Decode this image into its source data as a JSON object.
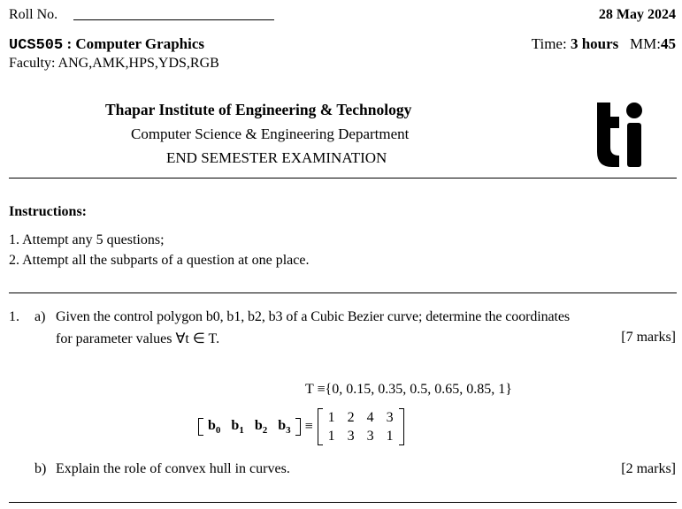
{
  "header": {
    "roll_label": "Roll No.",
    "date": "28 May 2024",
    "course_code": "UCS505",
    "course_sep": " : ",
    "course_name": "Computer Graphics",
    "time_label": "Time: ",
    "time_value": "3 hours",
    "mm_label": "MM:",
    "mm_value": "45",
    "faculty": "Faculty: ANG,AMK,HPS,YDS,RGB"
  },
  "institute": {
    "name": "Thapar Institute of Engineering & Technology",
    "department": "Computer Science & Engineering Department",
    "exam": "END SEMESTER EXAMINATION",
    "logo_text": "ti"
  },
  "instructions": {
    "title": "Instructions:",
    "items": [
      "1. Attempt any 5 questions;",
      "2. Attempt all the subparts of a question at one place."
    ]
  },
  "question1": {
    "number": "1.",
    "a_label": "a)",
    "a_text_line1": "Given the control polygon b0, b1, b2, b3 of a Cubic Bezier curve; determine the coordinates",
    "a_text_line2": "for parameter values ∀t ∈ T.",
    "a_marks": "[7 marks]",
    "T_set": "T ≡{0, 0.15, 0.35, 0.5, 0.65, 0.85, 1}",
    "matrix_row1": [
      "1",
      "2",
      "4",
      "3"
    ],
    "matrix_row2": [
      "1",
      "3",
      "3",
      "1"
    ],
    "b_label": "b)",
    "b_text": "Explain the role of convex hull in curves.",
    "b_marks": "[2 marks]"
  }
}
